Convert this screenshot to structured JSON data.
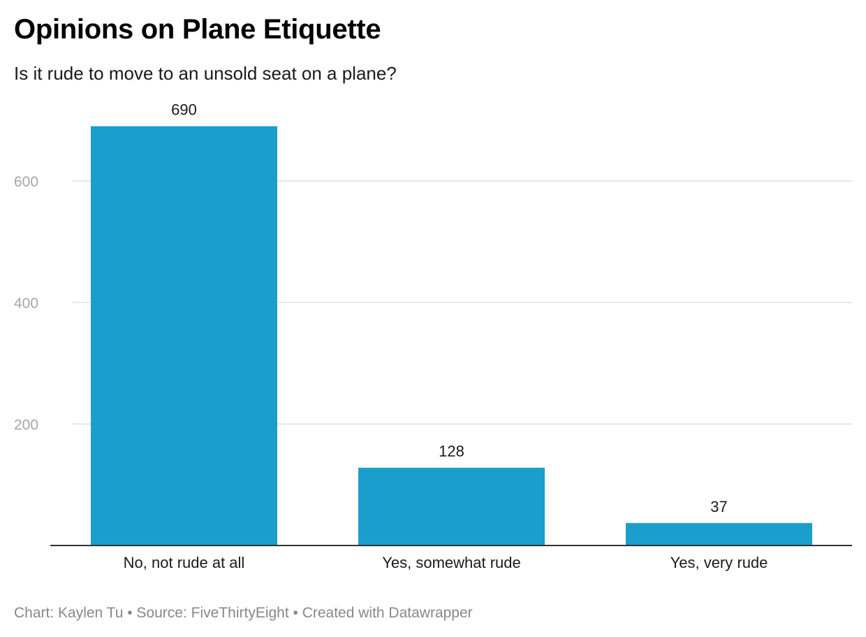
{
  "header": {
    "title": "Opinions on Plane Etiquette",
    "subtitle": "Is it rude to move to an unsold seat on a plane?"
  },
  "footer": {
    "credit": "Chart: Kaylen Tu • Source: FiveThirtyEight  • Created with Datawrapper"
  },
  "chart_data": {
    "type": "bar",
    "title": "Opinions on Plane Etiquette",
    "subtitle": "Is it rude to move to an unsold seat on a plane?",
    "categories": [
      "No, not rude at all",
      "Yes, somewhat rude",
      "Yes, very rude"
    ],
    "values": [
      690,
      128,
      37
    ],
    "value_labels": [
      "690",
      "128",
      "37"
    ],
    "y_ticks": [
      200,
      400,
      600
    ],
    "y_tick_labels": [
      "200",
      "400",
      "600"
    ],
    "ylim": [
      0,
      690
    ],
    "grid": true,
    "legend": "none",
    "colors": {
      "bar": "#1a9fcc",
      "grid": "#e0e0e0",
      "axis": "#333333",
      "tick_label": "#a6a6a6",
      "value_label": "#1a1a1a",
      "category_label": "#1a1a1a"
    }
  }
}
